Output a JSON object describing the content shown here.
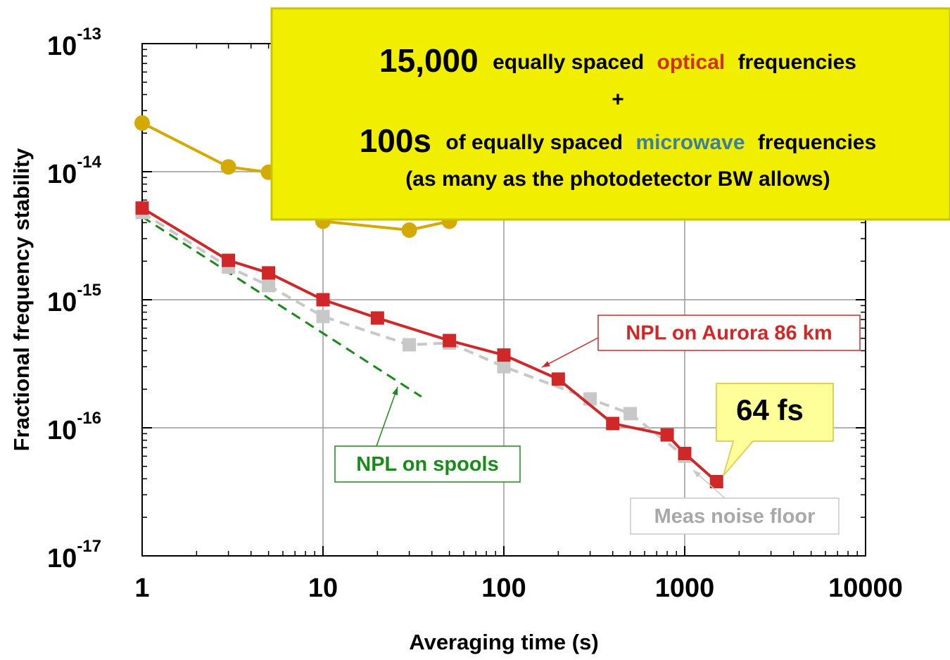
{
  "chart_data": {
    "type": "line",
    "xlabel": "Averaging time (s)",
    "ylabel": "Fractional frequency stability",
    "xscale": "log",
    "yscale": "log",
    "xlim": [
      1,
      10000
    ],
    "ylim": [
      1e-17,
      1e-13
    ],
    "xticks": [
      1,
      10,
      100,
      1000,
      10000
    ],
    "yticks": [
      {
        "value": 1e-17,
        "label": "10",
        "exponent": "-17"
      },
      {
        "value": 1e-16,
        "label": "10",
        "exponent": "-16"
      },
      {
        "value": 1e-15,
        "label": "10",
        "exponent": "-15"
      },
      {
        "value": 1e-14,
        "label": "10",
        "exponent": "-14"
      },
      {
        "value": 1e-13,
        "label": "10",
        "exponent": "-13"
      }
    ],
    "grid": true,
    "minor_ticks": true,
    "series": [
      {
        "color": "#d4aa00",
        "marker": "circle",
        "dash": false,
        "x": [
          1,
          3,
          5,
          10,
          30,
          50,
          100
        ],
        "values": [
          2.4e-14,
          1.09e-14,
          9.9e-15,
          4.1e-15,
          3.5e-15,
          4.1e-15,
          5e-15
        ]
      },
      {
        "name": "NPL on spools",
        "color": "#1a8a1a",
        "marker": null,
        "dash": true,
        "x": [
          1,
          35
        ],
        "values": [
          4.45e-15,
          1.75e-16
        ]
      },
      {
        "name": "Meas noise floor",
        "color": "#c8c8c8",
        "marker": "square",
        "dash": true,
        "x": [
          1,
          3,
          5,
          10,
          30,
          50,
          100,
          300,
          500,
          1000
        ],
        "values": [
          4.8e-15,
          1.8e-15,
          1.29e-15,
          7.4e-16,
          4.45e-16,
          4.6e-16,
          3e-16,
          1.68e-16,
          1.29e-16,
          6e-17
        ]
      },
      {
        "name": "NPL on Aurora 86 km",
        "color": "#d02828",
        "marker": "square",
        "dash": false,
        "x": [
          1,
          3,
          5,
          10,
          20,
          50,
          100,
          200,
          400,
          800,
          1000,
          1500
        ],
        "values": [
          5.2e-15,
          2.03e-15,
          1.62e-15,
          1e-15,
          7.2e-16,
          4.8e-16,
          3.7e-16,
          2.4e-16,
          1.08e-16,
          8.8e-17,
          6.3e-17,
          3.8e-17
        ]
      }
    ],
    "annotation": {
      "lines": [
        [
          "15,000",
          "equally spaced",
          "optical",
          "frequencies"
        ],
        [
          "+"
        ],
        [
          "100s",
          "of equally spaced",
          "microwave",
          "frequencies"
        ],
        [
          "(as many as the photodetector BW allows)"
        ]
      ]
    },
    "callout": "64 fs"
  }
}
